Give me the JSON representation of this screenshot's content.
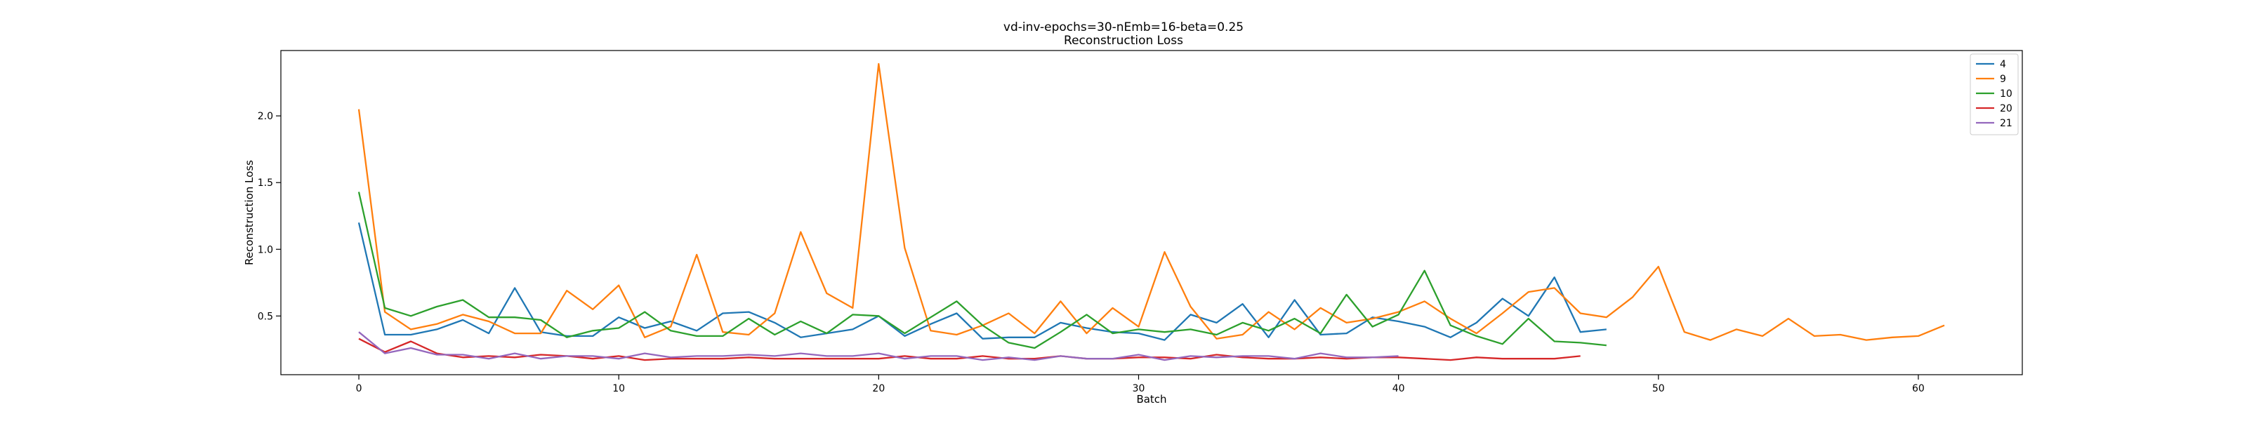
{
  "chart_data": {
    "type": "line",
    "title": "vd-inv-epochs=30-nEmb=16-beta=0.25",
    "subtitle": "Reconstruction Loss",
    "xlabel": "Batch",
    "ylabel": "Reconstruction Loss",
    "xlim": [
      -3,
      64
    ],
    "ylim": [
      0.06,
      2.49
    ],
    "xticks": [
      0,
      10,
      20,
      30,
      40,
      50,
      60
    ],
    "yticks": [
      0.5,
      1.0,
      1.5,
      2.0
    ],
    "grid": false,
    "legend_position": "top-right",
    "series": [
      {
        "name": "4",
        "color": "#1f77b4",
        "values": [
          1.2,
          0.36,
          0.36,
          0.4,
          0.47,
          0.37,
          0.71,
          0.38,
          0.35,
          0.35,
          0.49,
          0.41,
          0.46,
          0.39,
          0.52,
          0.53,
          0.45,
          0.34,
          0.37,
          0.4,
          0.5,
          0.35,
          0.44,
          0.52,
          0.33,
          0.34,
          0.34,
          0.45,
          0.41,
          0.38,
          0.37,
          0.32,
          0.51,
          0.45,
          0.59,
          0.34,
          0.62,
          0.36,
          0.37,
          0.49,
          0.46,
          0.42,
          0.34,
          0.45,
          0.63,
          0.5,
          0.79,
          0.38,
          0.4
        ]
      },
      {
        "name": "9",
        "color": "#ff7f0e",
        "values": [
          2.05,
          0.53,
          0.4,
          0.44,
          0.51,
          0.46,
          0.37,
          0.37,
          0.69,
          0.55,
          0.73,
          0.34,
          0.42,
          0.96,
          0.38,
          0.36,
          0.52,
          1.13,
          0.67,
          0.56,
          2.39,
          1.01,
          0.39,
          0.36,
          0.43,
          0.52,
          0.37,
          0.61,
          0.37,
          0.56,
          0.42,
          0.98,
          0.57,
          0.33,
          0.36,
          0.53,
          0.4,
          0.56,
          0.45,
          0.48,
          0.53,
          0.61,
          0.48,
          0.37,
          0.52,
          0.68,
          0.71,
          0.52,
          0.49,
          0.64,
          0.87,
          0.38,
          0.32,
          0.4,
          0.35,
          0.48,
          0.35,
          0.36,
          0.32,
          0.34,
          0.35,
          0.43
        ]
      },
      {
        "name": "10",
        "color": "#2ca02c",
        "values": [
          1.43,
          0.56,
          0.5,
          0.57,
          0.62,
          0.49,
          0.49,
          0.47,
          0.34,
          0.39,
          0.41,
          0.53,
          0.39,
          0.35,
          0.35,
          0.48,
          0.36,
          0.46,
          0.37,
          0.51,
          0.5,
          0.37,
          0.49,
          0.61,
          0.43,
          0.3,
          0.26,
          0.38,
          0.51,
          0.37,
          0.4,
          0.38,
          0.4,
          0.36,
          0.45,
          0.39,
          0.48,
          0.37,
          0.66,
          0.42,
          0.51,
          0.84,
          0.43,
          0.35,
          0.29,
          0.48,
          0.31,
          0.3,
          0.28
        ]
      },
      {
        "name": "20",
        "color": "#d62728",
        "values": [
          0.33,
          0.23,
          0.31,
          0.22,
          0.19,
          0.2,
          0.19,
          0.21,
          0.2,
          0.18,
          0.2,
          0.17,
          0.18,
          0.18,
          0.18,
          0.19,
          0.18,
          0.18,
          0.18,
          0.18,
          0.18,
          0.2,
          0.18,
          0.18,
          0.2,
          0.18,
          0.18,
          0.2,
          0.18,
          0.18,
          0.19,
          0.19,
          0.18,
          0.21,
          0.19,
          0.18,
          0.18,
          0.19,
          0.18,
          0.19,
          0.19,
          0.18,
          0.17,
          0.19,
          0.18,
          0.18,
          0.18,
          0.2
        ]
      },
      {
        "name": "21",
        "color": "#9467bd",
        "values": [
          0.38,
          0.22,
          0.26,
          0.21,
          0.21,
          0.18,
          0.22,
          0.18,
          0.2,
          0.2,
          0.18,
          0.22,
          0.19,
          0.2,
          0.2,
          0.21,
          0.2,
          0.22,
          0.2,
          0.2,
          0.22,
          0.18,
          0.2,
          0.2,
          0.17,
          0.19,
          0.17,
          0.2,
          0.18,
          0.18,
          0.21,
          0.17,
          0.2,
          0.19,
          0.2,
          0.2,
          0.18,
          0.22,
          0.19,
          0.19,
          0.2
        ]
      }
    ]
  }
}
